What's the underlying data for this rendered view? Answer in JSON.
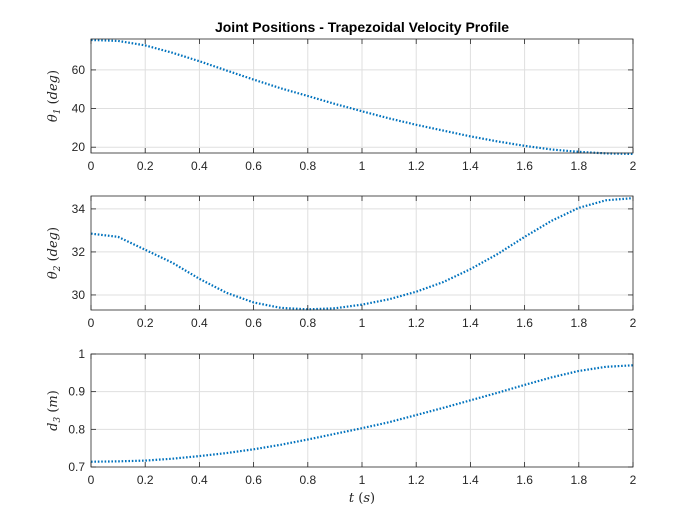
{
  "figure": {
    "title": "Joint Positions - Trapezoidal Velocity Profile",
    "line_color": "#0072BD",
    "axes_color": "#262626",
    "grid_color": "#dfdfdf"
  },
  "chart_data": [
    {
      "type": "line",
      "title": "Joint Positions - Trapezoidal Velocity Profile",
      "ylabel": {
        "symbol": "θ",
        "sub": "1",
        "unit": "deg"
      },
      "xlabel": "",
      "xlim": [
        0,
        2
      ],
      "ylim": [
        17,
        76
      ],
      "xticks": [
        0,
        0.2,
        0.4,
        0.6,
        0.8,
        1,
        1.2,
        1.4,
        1.6,
        1.8,
        2
      ],
      "xtick_labels": [
        "0",
        "0.2",
        "0.4",
        "0.6",
        "0.8",
        "1",
        "1.2",
        "1.4",
        "1.6",
        "1.8",
        "2"
      ],
      "yticks": [
        20,
        40,
        60
      ],
      "ytick_labels": [
        "20",
        "40",
        "60"
      ],
      "grid": true,
      "line_style": "dotted",
      "x": [
        0,
        0.1,
        0.2,
        0.3,
        0.4,
        0.5,
        0.6,
        0.7,
        0.8,
        0.9,
        1.0,
        1.1,
        1.2,
        1.3,
        1.4,
        1.5,
        1.6,
        1.7,
        1.8,
        1.9,
        2.0
      ],
      "y": [
        75.5,
        75.0,
        72.7,
        68.9,
        64.5,
        59.7,
        55.0,
        50.5,
        46.5,
        42.4,
        38.6,
        34.9,
        31.6,
        28.6,
        25.6,
        23.0,
        20.7,
        18.8,
        17.6,
        16.8,
        16.5
      ]
    },
    {
      "type": "line",
      "ylabel": {
        "symbol": "θ",
        "sub": "2",
        "unit": "deg"
      },
      "xlabel": "",
      "xlim": [
        0,
        2
      ],
      "ylim": [
        29.3,
        34.6
      ],
      "xticks": [
        0,
        0.2,
        0.4,
        0.6,
        0.8,
        1,
        1.2,
        1.4,
        1.6,
        1.8,
        2
      ],
      "xtick_labels": [
        "0",
        "0.2",
        "0.4",
        "0.6",
        "0.8",
        "1",
        "1.2",
        "1.4",
        "1.6",
        "1.8",
        "2"
      ],
      "yticks": [
        30,
        32,
        34
      ],
      "ytick_labels": [
        "30",
        "32",
        "34"
      ],
      "grid": true,
      "line_style": "dotted",
      "x": [
        0,
        0.1,
        0.2,
        0.3,
        0.4,
        0.5,
        0.6,
        0.7,
        0.8,
        0.9,
        1.0,
        1.1,
        1.2,
        1.3,
        1.4,
        1.5,
        1.6,
        1.7,
        1.8,
        1.9,
        2.0
      ],
      "y": [
        32.85,
        32.7,
        32.1,
        31.5,
        30.75,
        30.1,
        29.65,
        29.4,
        29.33,
        29.38,
        29.55,
        29.8,
        30.15,
        30.6,
        31.2,
        31.9,
        32.7,
        33.45,
        34.05,
        34.4,
        34.5
      ]
    },
    {
      "type": "line",
      "ylabel": {
        "symbol": "d",
        "sub": "3",
        "unit": "m"
      },
      "xlabel": {
        "symbol": "t",
        "unit": "s"
      },
      "xlim": [
        0,
        2
      ],
      "ylim": [
        0.7,
        1.0
      ],
      "xticks": [
        0,
        0.2,
        0.4,
        0.6,
        0.8,
        1,
        1.2,
        1.4,
        1.6,
        1.8,
        2
      ],
      "xtick_labels": [
        "0",
        "0.2",
        "0.4",
        "0.6",
        "0.8",
        "1",
        "1.2",
        "1.4",
        "1.6",
        "1.8",
        "2"
      ],
      "yticks": [
        0.7,
        0.8,
        0.9,
        1.0
      ],
      "ytick_labels": [
        "0.7",
        "0.8",
        "0.9",
        "1"
      ],
      "grid": true,
      "line_style": "dotted",
      "x": [
        0,
        0.1,
        0.2,
        0.3,
        0.4,
        0.5,
        0.6,
        0.7,
        0.8,
        0.9,
        1.0,
        1.1,
        1.2,
        1.3,
        1.4,
        1.5,
        1.6,
        1.7,
        1.8,
        1.9,
        2.0
      ],
      "y": [
        0.714,
        0.715,
        0.717,
        0.722,
        0.729,
        0.737,
        0.747,
        0.759,
        0.773,
        0.788,
        0.803,
        0.819,
        0.838,
        0.857,
        0.877,
        0.897,
        0.918,
        0.938,
        0.955,
        0.966,
        0.97
      ]
    }
  ]
}
